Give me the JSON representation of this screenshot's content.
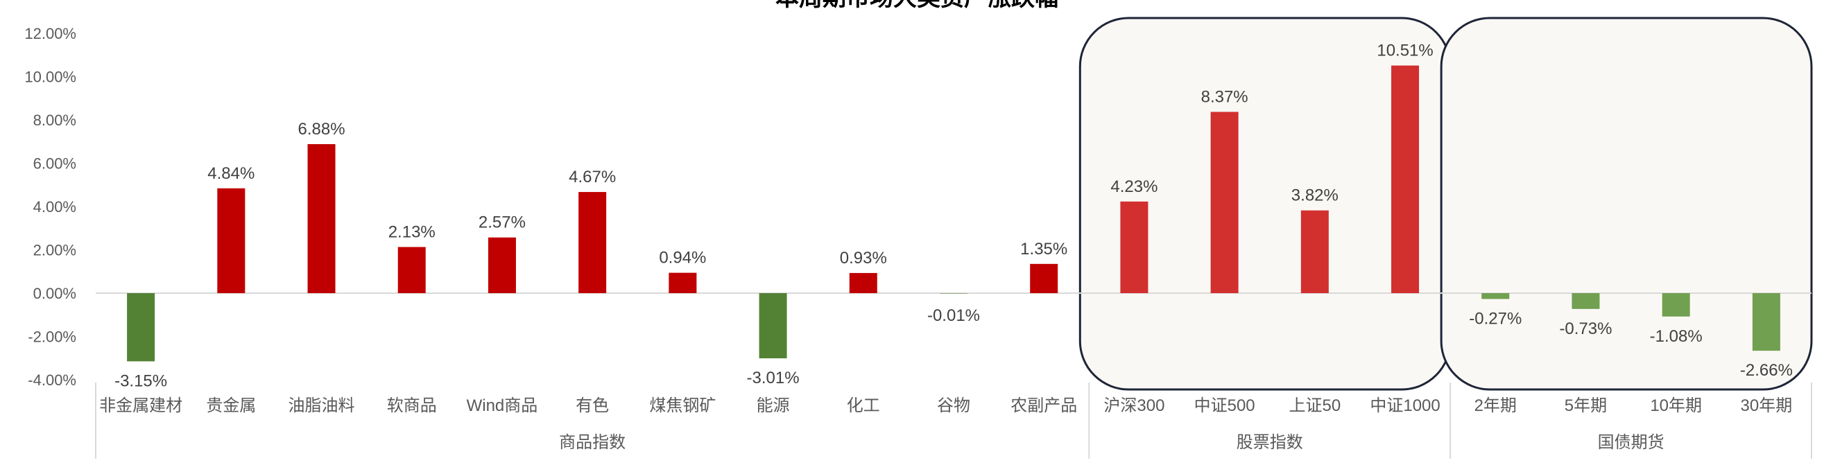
{
  "chart_data": {
    "type": "bar",
    "title": "本周期市场大类资产涨跌幅",
    "ylim": [
      -4,
      12
    ],
    "yticks": [
      "-4.00%",
      "-2.00%",
      "0.00%",
      "2.00%",
      "4.00%",
      "6.00%",
      "8.00%",
      "10.00%",
      "12.00%"
    ],
    "categories": [
      "非金属建材",
      "贵金属",
      "油脂油料",
      "软商品",
      "Wind商品",
      "有色",
      "煤焦钢矿",
      "能源",
      "化工",
      "谷物",
      "农副产品",
      "沪深300",
      "中证500",
      "上证50",
      "中证1000",
      "2年期",
      "5年期",
      "10年期",
      "30年期"
    ],
    "values": [
      -3.15,
      4.84,
      6.88,
      2.13,
      2.57,
      4.67,
      0.94,
      -3.01,
      0.93,
      -0.01,
      1.35,
      4.23,
      8.37,
      3.82,
      10.51,
      -0.27,
      -0.73,
      -1.08,
      -2.66
    ],
    "data_labels": [
      "-3.15%",
      "4.84%",
      "6.88%",
      "2.13%",
      "2.57%",
      "4.67%",
      "0.94%",
      "-3.01%",
      "0.93%",
      "-0.01%",
      "1.35%",
      "4.23%",
      "8.37%",
      "3.82%",
      "10.51%",
      "-0.27%",
      "-0.73%",
      "-1.08%",
      "-2.66%"
    ],
    "groups": [
      {
        "name": "商品指数",
        "start": 0,
        "end": 10
      },
      {
        "name": "股票指数",
        "start": 11,
        "end": 14
      },
      {
        "name": "国债期货",
        "start": 15,
        "end": 18
      }
    ],
    "colors": {
      "commodity_up": "#C00000",
      "equity_up": "#D22F2F",
      "down": "#548235",
      "bond_down": "#70A050",
      "highlight_fill": "#FAF8F4",
      "highlight_border": "#1F2538"
    },
    "grid": false
  }
}
